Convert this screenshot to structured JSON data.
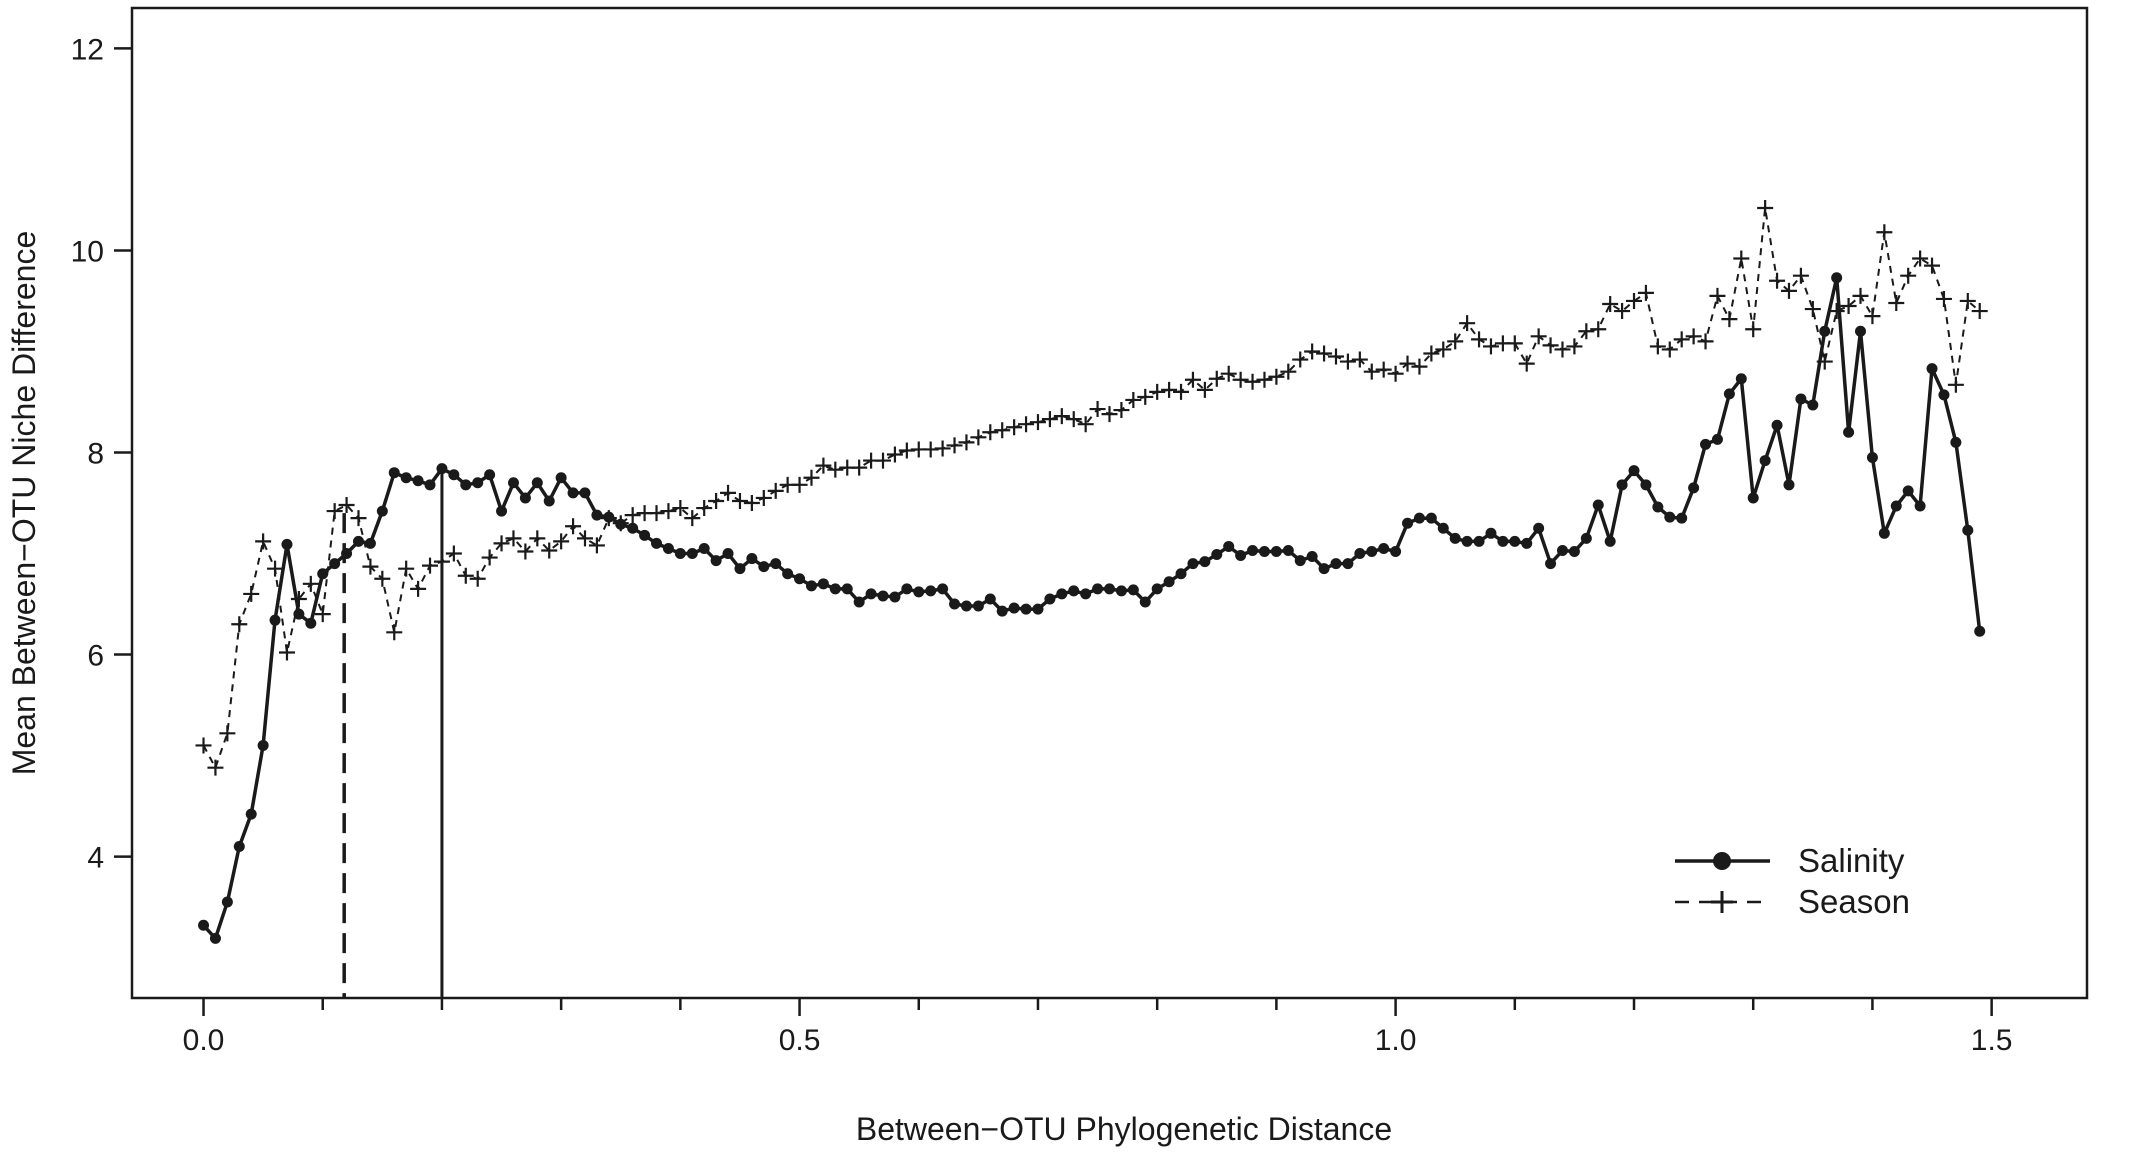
{
  "chart_data": {
    "type": "line",
    "title": "",
    "xlabel": "Between−OTU Phylogenetic Distance",
    "ylabel": "Mean Between−OTU Niche Difference",
    "xlim": [
      -0.06,
      1.58
    ],
    "ylim": [
      2.6,
      12.4
    ],
    "x_ticks_major": [
      0.0,
      0.5,
      1.0,
      1.5
    ],
    "x_tick_labels": [
      "0.0",
      "0.5",
      "1.0",
      "1.5"
    ],
    "x_ticks_minor": [
      0.1,
      0.2,
      0.3,
      0.4,
      0.6,
      0.7,
      0.8,
      0.9,
      1.1,
      1.2,
      1.3,
      1.4
    ],
    "y_ticks": [
      4,
      6,
      8,
      10,
      12
    ],
    "y_tick_labels": [
      "4",
      "6",
      "8",
      "10",
      "12"
    ],
    "grid": false,
    "legend_position": "bottom-right",
    "vlines": [
      {
        "x": 0.118,
        "style": "dashed",
        "series": "Season"
      },
      {
        "x": 0.2,
        "style": "solid",
        "series": "Salinity"
      }
    ],
    "series": [
      {
        "name": "Salinity",
        "style": "solid",
        "marker": "circle",
        "x": [
          0.0,
          0.01,
          0.02,
          0.03,
          0.04,
          0.05,
          0.06,
          0.07,
          0.08,
          0.09,
          0.1,
          0.11,
          0.12,
          0.13,
          0.14,
          0.15,
          0.16,
          0.17,
          0.18,
          0.19,
          0.2,
          0.21,
          0.22,
          0.23,
          0.24,
          0.25,
          0.26,
          0.27,
          0.28,
          0.29,
          0.3,
          0.31,
          0.32,
          0.33,
          0.34,
          0.35,
          0.36,
          0.37,
          0.38,
          0.39,
          0.4,
          0.41,
          0.42,
          0.43,
          0.44,
          0.45,
          0.46,
          0.47,
          0.48,
          0.49,
          0.5,
          0.51,
          0.52,
          0.53,
          0.54,
          0.55,
          0.56,
          0.57,
          0.58,
          0.59,
          0.6,
          0.61,
          0.62,
          0.63,
          0.64,
          0.65,
          0.66,
          0.67,
          0.68,
          0.69,
          0.7,
          0.71,
          0.72,
          0.73,
          0.74,
          0.75,
          0.76,
          0.77,
          0.78,
          0.79,
          0.8,
          0.81,
          0.82,
          0.83,
          0.84,
          0.85,
          0.86,
          0.87,
          0.88,
          0.89,
          0.9,
          0.91,
          0.92,
          0.93,
          0.94,
          0.95,
          0.96,
          0.97,
          0.98,
          0.99,
          1.0,
          1.01,
          1.02,
          1.03,
          1.04,
          1.05,
          1.06,
          1.07,
          1.08,
          1.09,
          1.1,
          1.11,
          1.12,
          1.13,
          1.14,
          1.15,
          1.16,
          1.17,
          1.18,
          1.19,
          1.2,
          1.21,
          1.22,
          1.23,
          1.24,
          1.25,
          1.26,
          1.27,
          1.28,
          1.29,
          1.3,
          1.31,
          1.32,
          1.33,
          1.34,
          1.35,
          1.36,
          1.37,
          1.38,
          1.39,
          1.4,
          1.41,
          1.42,
          1.43,
          1.44,
          1.45,
          1.46,
          1.47,
          1.48,
          1.49
        ],
        "y": [
          3.32,
          3.19,
          3.55,
          4.1,
          4.42,
          5.1,
          6.34,
          7.09,
          6.4,
          6.31,
          6.8,
          6.9,
          7.0,
          7.12,
          7.1,
          7.42,
          7.8,
          7.75,
          7.72,
          7.68,
          7.84,
          7.78,
          7.68,
          7.7,
          7.78,
          7.42,
          7.7,
          7.55,
          7.7,
          7.52,
          7.75,
          7.6,
          7.6,
          7.38,
          7.36,
          7.29,
          7.25,
          7.18,
          7.1,
          7.05,
          7.0,
          7.0,
          7.05,
          6.93,
          7.0,
          6.85,
          6.95,
          6.87,
          6.9,
          6.8,
          6.75,
          6.68,
          6.7,
          6.65,
          6.65,
          6.52,
          6.6,
          6.58,
          6.57,
          6.65,
          6.62,
          6.63,
          6.65,
          6.5,
          6.48,
          6.48,
          6.55,
          6.43,
          6.46,
          6.45,
          6.45,
          6.55,
          6.6,
          6.63,
          6.6,
          6.65,
          6.65,
          6.63,
          6.64,
          6.52,
          6.65,
          6.72,
          6.8,
          6.9,
          6.92,
          6.99,
          7.07,
          6.98,
          7.03,
          7.02,
          7.02,
          7.03,
          6.93,
          6.97,
          6.85,
          6.9,
          6.9,
          7.0,
          7.02,
          7.05,
          7.02,
          7.3,
          7.35,
          7.35,
          7.25,
          7.15,
          7.12,
          7.12,
          7.2,
          7.12,
          7.12,
          7.1,
          7.25,
          6.9,
          7.03,
          7.02,
          7.15,
          7.48,
          7.12,
          7.68,
          7.82,
          7.68,
          7.46,
          7.36,
          7.35,
          7.65,
          8.08,
          8.13,
          8.58,
          8.73,
          7.55,
          7.92,
          8.27,
          7.68,
          8.53,
          8.47,
          9.2,
          9.73,
          8.2,
          9.2,
          7.95,
          7.2,
          7.47,
          7.62,
          7.47,
          8.83,
          8.57,
          8.1,
          7.23,
          6.23
        ]
      },
      {
        "name": "Season",
        "style": "dashed",
        "marker": "plus",
        "x": [
          0.0,
          0.01,
          0.02,
          0.03,
          0.04,
          0.05,
          0.06,
          0.07,
          0.08,
          0.09,
          0.1,
          0.11,
          0.12,
          0.13,
          0.14,
          0.15,
          0.16,
          0.17,
          0.18,
          0.19,
          0.2,
          0.21,
          0.22,
          0.23,
          0.24,
          0.25,
          0.26,
          0.27,
          0.28,
          0.29,
          0.3,
          0.31,
          0.32,
          0.33,
          0.34,
          0.35,
          0.36,
          0.37,
          0.38,
          0.39,
          0.4,
          0.41,
          0.42,
          0.43,
          0.44,
          0.45,
          0.46,
          0.47,
          0.48,
          0.49,
          0.5,
          0.51,
          0.52,
          0.53,
          0.54,
          0.55,
          0.56,
          0.57,
          0.58,
          0.59,
          0.6,
          0.61,
          0.62,
          0.63,
          0.64,
          0.65,
          0.66,
          0.67,
          0.68,
          0.69,
          0.7,
          0.71,
          0.72,
          0.73,
          0.74,
          0.75,
          0.76,
          0.77,
          0.78,
          0.79,
          0.8,
          0.81,
          0.82,
          0.83,
          0.84,
          0.85,
          0.86,
          0.87,
          0.88,
          0.89,
          0.9,
          0.91,
          0.92,
          0.93,
          0.94,
          0.95,
          0.96,
          0.97,
          0.98,
          0.99,
          1.0,
          1.01,
          1.02,
          1.03,
          1.04,
          1.05,
          1.06,
          1.07,
          1.08,
          1.09,
          1.1,
          1.11,
          1.12,
          1.13,
          1.14,
          1.15,
          1.16,
          1.17,
          1.18,
          1.19,
          1.2,
          1.21,
          1.22,
          1.23,
          1.24,
          1.25,
          1.26,
          1.27,
          1.28,
          1.29,
          1.3,
          1.31,
          1.32,
          1.33,
          1.34,
          1.35,
          1.36,
          1.37,
          1.38,
          1.39,
          1.4,
          1.41,
          1.42,
          1.43,
          1.44,
          1.45,
          1.46,
          1.47,
          1.48,
          1.49
        ],
        "y": [
          5.1,
          4.88,
          5.22,
          6.3,
          6.6,
          7.12,
          6.85,
          6.02,
          6.55,
          6.7,
          6.4,
          7.42,
          7.48,
          7.35,
          6.87,
          6.75,
          6.22,
          6.85,
          6.65,
          6.88,
          6.92,
          7.0,
          6.78,
          6.75,
          6.96,
          7.1,
          7.15,
          7.02,
          7.15,
          7.03,
          7.12,
          7.27,
          7.15,
          7.08,
          7.35,
          7.3,
          7.38,
          7.4,
          7.4,
          7.42,
          7.45,
          7.35,
          7.45,
          7.52,
          7.6,
          7.52,
          7.5,
          7.55,
          7.62,
          7.68,
          7.68,
          7.75,
          7.87,
          7.83,
          7.85,
          7.85,
          7.92,
          7.92,
          7.98,
          8.02,
          8.03,
          8.03,
          8.04,
          8.07,
          8.1,
          8.15,
          8.2,
          8.22,
          8.25,
          8.28,
          8.3,
          8.33,
          8.36,
          8.33,
          8.28,
          8.43,
          8.38,
          8.42,
          8.52,
          8.55,
          8.6,
          8.62,
          8.6,
          8.72,
          8.62,
          8.73,
          8.78,
          8.72,
          8.7,
          8.72,
          8.75,
          8.8,
          8.92,
          9.0,
          8.98,
          8.95,
          8.9,
          8.92,
          8.8,
          8.82,
          8.78,
          8.88,
          8.85,
          8.98,
          9.02,
          9.1,
          9.28,
          9.12,
          9.05,
          9.08,
          9.08,
          8.88,
          9.15,
          9.06,
          9.02,
          9.05,
          9.2,
          9.22,
          9.47,
          9.4,
          9.5,
          9.58,
          9.05,
          9.02,
          9.12,
          9.15,
          9.1,
          9.55,
          9.32,
          9.92,
          9.22,
          10.42,
          9.7,
          9.6,
          9.75,
          9.42,
          8.9,
          9.4,
          9.45,
          9.55,
          9.35,
          10.18,
          9.48,
          9.75,
          9.92,
          9.85,
          9.52,
          8.67,
          9.5,
          9.4
        ]
      }
    ]
  }
}
